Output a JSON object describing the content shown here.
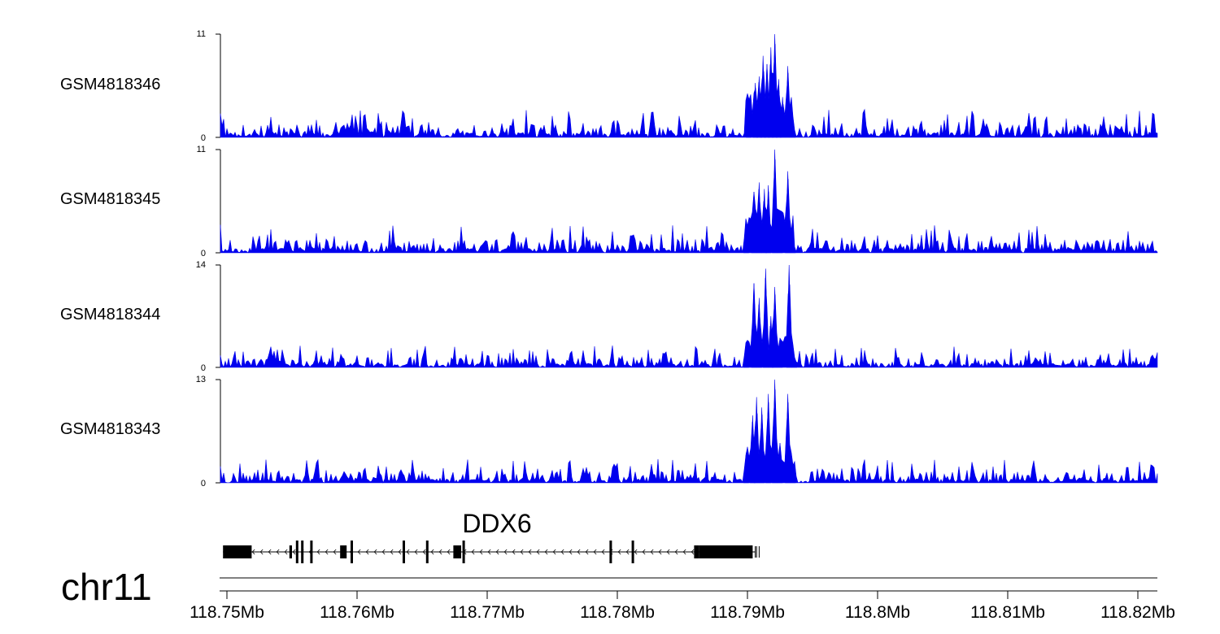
{
  "chart_data": {
    "type": "area",
    "x_unit": "Mb",
    "xlim": [
      118.7495,
      118.8215
    ],
    "chromosome": "chr11",
    "x_ticks": [
      {
        "value": 118.75,
        "label": "118.75Mb"
      },
      {
        "value": 118.76,
        "label": "118.76Mb"
      },
      {
        "value": 118.77,
        "label": "118.77Mb"
      },
      {
        "value": 118.78,
        "label": "118.78Mb"
      },
      {
        "value": 118.79,
        "label": "118.79Mb"
      },
      {
        "value": 118.8,
        "label": "118.8Mb"
      },
      {
        "value": 118.81,
        "label": "118.81Mb"
      },
      {
        "value": 118.82,
        "label": "118.82Mb"
      }
    ],
    "tracks": [
      {
        "name": "GSM4818346",
        "ylim": [
          0,
          11
        ],
        "ymin_label": "0",
        "ymax_label": "11",
        "color": "#0000ee",
        "peaks": [
          {
            "x": 118.7901,
            "y": 4.2
          },
          {
            "x": 118.7906,
            "y": 5.8
          },
          {
            "x": 118.7909,
            "y": 6.5
          },
          {
            "x": 118.7912,
            "y": 8.7
          },
          {
            "x": 118.7915,
            "y": 7.8
          },
          {
            "x": 118.7918,
            "y": 9.6
          },
          {
            "x": 118.7921,
            "y": 11.0
          },
          {
            "x": 118.7924,
            "y": 6.2
          },
          {
            "x": 118.7927,
            "y": 4.3
          },
          {
            "x": 118.7931,
            "y": 7.6
          },
          {
            "x": 118.7935,
            "y": 1.5
          }
        ]
      },
      {
        "name": "GSM4818345",
        "ylim": [
          0,
          11
        ],
        "ymin_label": "0",
        "ymax_label": "11",
        "color": "#0000ee",
        "peaks": [
          {
            "x": 118.7899,
            "y": 3.5
          },
          {
            "x": 118.7905,
            "y": 6.5
          },
          {
            "x": 118.7909,
            "y": 7.5
          },
          {
            "x": 118.7913,
            "y": 6.8
          },
          {
            "x": 118.7916,
            "y": 7.2
          },
          {
            "x": 118.7921,
            "y": 11.0
          },
          {
            "x": 118.7925,
            "y": 4.5
          },
          {
            "x": 118.7931,
            "y": 8.7
          },
          {
            "x": 118.7935,
            "y": 1.2
          }
        ]
      },
      {
        "name": "GSM4818344",
        "ylim": [
          0,
          14
        ],
        "ymin_label": "0",
        "ymax_label": "14",
        "color": "#0000ee",
        "peaks": [
          {
            "x": 118.7899,
            "y": 3.5
          },
          {
            "x": 118.7905,
            "y": 11.5
          },
          {
            "x": 118.7909,
            "y": 9.5
          },
          {
            "x": 118.7914,
            "y": 13.5
          },
          {
            "x": 118.7918,
            "y": 7.0
          },
          {
            "x": 118.7921,
            "y": 11.0
          },
          {
            "x": 118.7925,
            "y": 4.0
          },
          {
            "x": 118.7932,
            "y": 14.0
          },
          {
            "x": 118.7936,
            "y": 1.5
          }
        ]
      },
      {
        "name": "GSM4818343",
        "ylim": [
          0,
          13
        ],
        "ymin_label": "0",
        "ymax_label": "13",
        "color": "#0000ee",
        "peaks": [
          {
            "x": 118.7899,
            "y": 3.8
          },
          {
            "x": 118.7904,
            "y": 8.5
          },
          {
            "x": 118.7907,
            "y": 10.8
          },
          {
            "x": 118.7911,
            "y": 9.5
          },
          {
            "x": 118.7916,
            "y": 11.2
          },
          {
            "x": 118.7921,
            "y": 13.0
          },
          {
            "x": 118.7925,
            "y": 5.0
          },
          {
            "x": 118.7931,
            "y": 11.2
          },
          {
            "x": 118.7935,
            "y": 1.5
          }
        ]
      }
    ],
    "gene": {
      "name": "DDX6",
      "strand": "-",
      "start": 118.7497,
      "end": 118.7906,
      "exons": [
        {
          "start": 118.7497,
          "end": 118.7519,
          "height": "thick"
        },
        {
          "start": 118.7548,
          "end": 118.755,
          "height": "thick"
        },
        {
          "start": 118.7553,
          "end": 118.7554,
          "height": "thin"
        },
        {
          "start": 118.7557,
          "end": 118.7558,
          "height": "thin"
        },
        {
          "start": 118.7564,
          "end": 118.7565,
          "height": "thin"
        },
        {
          "start": 118.7587,
          "end": 118.7592,
          "height": "thick"
        },
        {
          "start": 118.7595,
          "end": 118.7596,
          "height": "thin"
        },
        {
          "start": 118.7635,
          "end": 118.7636,
          "height": "thin"
        },
        {
          "start": 118.7653,
          "end": 118.7654,
          "height": "thin"
        },
        {
          "start": 118.7674,
          "end": 118.768,
          "height": "thick"
        },
        {
          "start": 118.7681,
          "end": 118.7682,
          "height": "thin"
        },
        {
          "start": 118.7794,
          "end": 118.7795,
          "height": "thin"
        },
        {
          "start": 118.7811,
          "end": 118.7812,
          "height": "thin"
        },
        {
          "start": 118.7859,
          "end": 118.7863,
          "height": "thick"
        },
        {
          "start": 118.7863,
          "end": 118.7904,
          "height": "thick"
        }
      ],
      "extra_marks": [
        118.7906,
        118.7907,
        118.7909
      ]
    }
  }
}
